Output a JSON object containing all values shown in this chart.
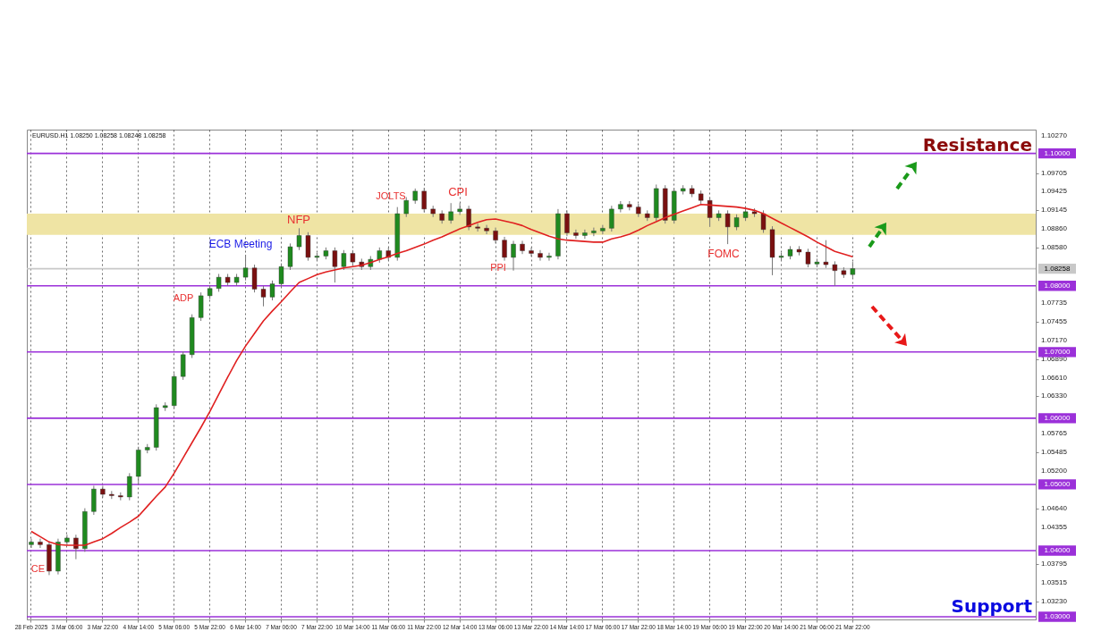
{
  "chart_data": {
    "type": "candlestick",
    "categories": [
      "28 Feb 2025",
      null,
      null,
      null,
      "3 Mar 06:00",
      null,
      null,
      null,
      "3 Mar 22:00",
      null,
      null,
      null,
      "4 Mar 14:00",
      null,
      null,
      null,
      "5 Mar 06:00",
      null,
      null,
      null,
      "5 Mar 22:00",
      null,
      null,
      null,
      "6 Mar 14:00",
      null,
      null,
      null,
      "7 Mar 06:00",
      null,
      null,
      null,
      "7 Mar 22:00",
      null,
      null,
      null,
      "10 Mar 14:00",
      null,
      null,
      null,
      "11 Mar 06:00",
      null,
      null,
      null,
      "11 Mar 22:00",
      null,
      null,
      null,
      "12 Mar 14:00",
      null,
      null,
      null,
      "13 Mar 06:00",
      null,
      null,
      null,
      "13 Mar 22:00",
      null,
      null,
      null,
      "14 Mar 14:00",
      null,
      null,
      null,
      "17 Mar 06:00",
      null,
      null,
      null,
      "17 Mar 22:00",
      null,
      null,
      null,
      "18 Mar 14:00",
      null,
      null,
      null,
      "19 Mar 06:00",
      null,
      null,
      null,
      "19 Mar 22:00",
      null,
      null,
      null,
      "20 Mar 14:00",
      null,
      null,
      null,
      "21 Mar 06:00",
      null,
      null,
      null,
      "21 Mar 22:00",
      null,
      null,
      null,
      null,
      null,
      null,
      null,
      null,
      null,
      null,
      null,
      null,
      null,
      null,
      null,
      null,
      null,
      null,
      null,
      null
    ],
    "ohlc": [
      [
        1.0409,
        1.0418,
        1.0404,
        1.0413
      ],
      [
        1.0413,
        1.0418,
        1.0404,
        1.0409
      ],
      [
        1.0409,
        1.0414,
        1.0363,
        1.0369
      ],
      [
        1.0369,
        1.0418,
        1.0364,
        1.0413
      ],
      [
        1.0413,
        1.0424,
        1.0408,
        1.0419
      ],
      [
        1.0419,
        1.0424,
        1.0387,
        1.0403
      ],
      [
        1.0403,
        1.0464,
        1.0398,
        1.0459
      ],
      [
        1.0459,
        1.0498,
        1.0454,
        1.0493
      ],
      [
        1.0493,
        1.0498,
        1.048,
        1.0485
      ],
      [
        1.0485,
        1.049,
        1.0478,
        1.0483
      ],
      [
        1.0483,
        1.0488,
        1.0476,
        1.0481
      ],
      [
        1.0481,
        1.0517,
        1.0476,
        1.0512
      ],
      [
        1.0512,
        1.0557,
        1.0499,
        1.0552
      ],
      [
        1.0552,
        1.0561,
        1.0547,
        1.0556
      ],
      [
        1.0556,
        1.0621,
        1.0551,
        1.0616
      ],
      [
        1.0616,
        1.0624,
        1.0611,
        1.0619
      ],
      [
        1.0619,
        1.0668,
        1.0614,
        1.0663
      ],
      [
        1.0663,
        1.0701,
        1.0658,
        1.0696
      ],
      [
        1.0696,
        1.0757,
        1.0691,
        1.0752
      ],
      [
        1.0752,
        1.079,
        1.0747,
        1.0785
      ],
      [
        1.0785,
        1.0801,
        1.078,
        1.0796
      ],
      [
        1.0796,
        1.0818,
        1.0791,
        1.0813
      ],
      [
        1.0813,
        1.0818,
        1.08,
        1.0805
      ],
      [
        1.0805,
        1.0818,
        1.08,
        1.0813
      ],
      [
        1.0813,
        1.0847,
        1.0808,
        1.0827
      ],
      [
        1.0827,
        1.0832,
        1.079,
        1.0795
      ],
      [
        1.0795,
        1.08,
        1.0769,
        1.0783
      ],
      [
        1.0783,
        1.0808,
        1.0778,
        1.0803
      ],
      [
        1.0803,
        1.0834,
        1.0798,
        1.0829
      ],
      [
        1.0829,
        1.0864,
        1.0824,
        1.0859
      ],
      [
        1.0859,
        1.0887,
        1.0854,
        1.0876
      ],
      [
        1.0876,
        1.0881,
        1.0838,
        1.0843
      ],
      [
        1.0843,
        1.085,
        1.0838,
        1.0845
      ],
      [
        1.0845,
        1.0858,
        1.084,
        1.0853
      ],
      [
        1.0853,
        1.0858,
        1.0805,
        1.0829
      ],
      [
        1.0829,
        1.0854,
        1.0824,
        1.0849
      ],
      [
        1.0849,
        1.0854,
        1.0831,
        1.0836
      ],
      [
        1.0836,
        1.0841,
        1.0824,
        1.0829
      ],
      [
        1.0829,
        1.0845,
        1.0824,
        1.084
      ],
      [
        1.084,
        1.0858,
        1.0835,
        1.0853
      ],
      [
        1.0853,
        1.0858,
        1.0838,
        1.0843
      ],
      [
        1.0843,
        1.0919,
        1.0838,
        1.0909
      ],
      [
        1.0909,
        1.0934,
        1.0904,
        1.0929
      ],
      [
        1.0929,
        1.0947,
        1.0924,
        1.0943
      ],
      [
        1.0943,
        1.0948,
        1.0911,
        1.0916
      ],
      [
        1.0916,
        1.0921,
        1.0904,
        1.0909
      ],
      [
        1.0909,
        1.0914,
        1.0894,
        1.0899
      ],
      [
        1.0899,
        1.0925,
        1.0894,
        1.0912
      ],
      [
        1.0912,
        1.0925,
        1.0907,
        1.0916
      ],
      [
        1.0916,
        1.0921,
        1.0884,
        1.0889
      ],
      [
        1.0889,
        1.0894,
        1.0882,
        1.0887
      ],
      [
        1.0887,
        1.0892,
        1.0878,
        1.0883
      ],
      [
        1.0883,
        1.0888,
        1.0864,
        1.0869
      ],
      [
        1.0869,
        1.0874,
        1.0838,
        1.0843
      ],
      [
        1.0843,
        1.0868,
        1.0823,
        1.0863
      ],
      [
        1.0863,
        1.0868,
        1.0848,
        1.0853
      ],
      [
        1.0853,
        1.0858,
        1.0844,
        1.0849
      ],
      [
        1.0849,
        1.0854,
        1.0838,
        1.0843
      ],
      [
        1.0843,
        1.085,
        1.0838,
        1.0845
      ],
      [
        1.0845,
        1.0916,
        1.084,
        1.0909
      ],
      [
        1.0909,
        1.0914,
        1.0875,
        1.088
      ],
      [
        1.088,
        1.0885,
        1.0871,
        1.0876
      ],
      [
        1.0876,
        1.0885,
        1.0871,
        1.088
      ],
      [
        1.088,
        1.0888,
        1.0875,
        1.0883
      ],
      [
        1.0883,
        1.0892,
        1.0878,
        1.0887
      ],
      [
        1.0887,
        1.0921,
        1.0882,
        1.0916
      ],
      [
        1.0916,
        1.0928,
        1.0911,
        1.0923
      ],
      [
        1.0923,
        1.0928,
        1.0914,
        1.0919
      ],
      [
        1.0919,
        1.0924,
        1.0904,
        1.0909
      ],
      [
        1.0909,
        1.0914,
        1.0898,
        1.0903
      ],
      [
        1.0903,
        1.0953,
        1.0898,
        1.0947
      ],
      [
        1.0947,
        1.0952,
        1.0894,
        1.0899
      ],
      [
        1.0899,
        1.0948,
        1.0894,
        1.0943
      ],
      [
        1.0943,
        1.0952,
        1.0938,
        1.0947
      ],
      [
        1.0947,
        1.0952,
        1.0934,
        1.0939
      ],
      [
        1.0939,
        1.0944,
        1.0924,
        1.0929
      ],
      [
        1.0929,
        1.0934,
        1.0889,
        1.0903
      ],
      [
        1.0903,
        1.0914,
        1.0898,
        1.0909
      ],
      [
        1.0909,
        1.0914,
        1.0863,
        1.0889
      ],
      [
        1.0889,
        1.0908,
        1.0884,
        1.0903
      ],
      [
        1.0903,
        1.0917,
        1.0898,
        1.0912
      ],
      [
        1.0912,
        1.0917,
        1.0904,
        1.0909
      ],
      [
        1.0909,
        1.0914,
        1.088,
        1.0885
      ],
      [
        1.0885,
        1.089,
        1.0816,
        1.0843
      ],
      [
        1.0843,
        1.085,
        1.0838,
        1.0845
      ],
      [
        1.0845,
        1.086,
        1.084,
        1.0855
      ],
      [
        1.0855,
        1.086,
        1.0846,
        1.0851
      ],
      [
        1.0851,
        1.0856,
        1.0828,
        1.0833
      ],
      [
        1.0833,
        1.0841,
        1.0828,
        1.0836
      ],
      [
        1.0836,
        1.0869,
        1.0827,
        1.0832
      ],
      [
        1.0832,
        1.0837,
        1.08,
        1.0823
      ],
      [
        1.0823,
        1.0828,
        1.0812,
        1.0817
      ],
      [
        1.0817,
        1.0836,
        1.0812,
        1.0826
      ],
      null,
      null,
      null,
      null,
      null,
      null,
      null,
      null,
      null,
      null,
      null,
      null,
      null,
      null,
      null,
      null,
      null,
      null,
      null,
      null
    ],
    "series": [
      {
        "type": "line",
        "color": "#e02020",
        "values": [
          1.0429,
          1.0421,
          1.0413,
          1.0409,
          1.0408,
          1.0408,
          1.0408,
          1.0413,
          1.0418,
          1.0426,
          1.0435,
          1.0443,
          1.0452,
          1.0467,
          1.0482,
          1.0496,
          1.0517,
          1.054,
          1.0563,
          1.0586,
          1.061,
          1.0636,
          1.0662,
          1.0687,
          1.0709,
          1.0728,
          1.0747,
          1.0762,
          1.0776,
          1.0791,
          1.0805,
          1.0811,
          1.0817,
          1.0821,
          1.0824,
          1.0827,
          1.0829,
          1.0831,
          1.0835,
          1.084,
          1.0844,
          1.0849,
          1.0853,
          1.0858,
          1.0863,
          1.0869,
          1.0874,
          1.088,
          1.0886,
          1.0891,
          1.0896,
          1.09,
          1.0901,
          1.0898,
          1.0895,
          1.0891,
          1.0885,
          1.088,
          1.0875,
          1.0871,
          1.0869,
          1.0868,
          1.0867,
          1.0866,
          1.0866,
          1.0871,
          1.0874,
          1.0878,
          1.0884,
          1.0891,
          1.0897,
          1.0903,
          1.0908,
          1.0913,
          1.0918,
          1.0923,
          1.0922,
          1.0921,
          1.092,
          1.0919,
          1.0917,
          1.0914,
          1.0909,
          1.0902,
          1.0895,
          1.0888,
          1.0881,
          1.0874,
          1.0866,
          1.0859,
          1.0852,
          1.0848,
          1.0844,
          null,
          null,
          null,
          null,
          null,
          null,
          null,
          null,
          null,
          null,
          null,
          null,
          null,
          null,
          null,
          null,
          null,
          null,
          null,
          null
        ]
      }
    ],
    "ylim": [
      1.0296,
      1.1036
    ],
    "yticks": [
      {
        "value": 1.1027,
        "label": "1.10270"
      },
      {
        "value": 1.09705,
        "label": "1.09705"
      },
      {
        "value": 1.09425,
        "label": "1.09425"
      },
      {
        "value": 1.09145,
        "label": "1.09145"
      },
      {
        "value": 1.0886,
        "label": "1.08860"
      },
      {
        "value": 1.0858,
        "label": "1.08580"
      },
      {
        "value": 1.07735,
        "label": "1.07735"
      },
      {
        "value": 1.07455,
        "label": "1.07455"
      },
      {
        "value": 1.0717,
        "label": "1.07170"
      },
      {
        "value": 1.0689,
        "label": "1.06890"
      },
      {
        "value": 1.0661,
        "label": "1.06610"
      },
      {
        "value": 1.0633,
        "label": "1.06330"
      },
      {
        "value": 1.05765,
        "label": "1.05765"
      },
      {
        "value": 1.05485,
        "label": "1.05485"
      },
      {
        "value": 1.052,
        "label": "1.05200"
      },
      {
        "value": 1.0464,
        "label": "1.04640"
      },
      {
        "value": 1.04355,
        "label": "1.04355"
      },
      {
        "value": 1.03795,
        "label": "1.03795"
      },
      {
        "value": 1.03515,
        "label": "1.03515"
      },
      {
        "value": 1.0323,
        "label": "1.03230"
      }
    ],
    "grid": "x",
    "ref_lines": [
      {
        "axis": "y",
        "value": 1.1,
        "label": "1.10000",
        "color": "#9b30d9"
      },
      {
        "axis": "y",
        "value": 1.08,
        "label": "1.08000",
        "color": "#9b30d9"
      },
      {
        "axis": "y",
        "value": 1.07,
        "label": "1.07000",
        "color": "#9b30d9"
      },
      {
        "axis": "y",
        "value": 1.06,
        "label": "1.06000",
        "color": "#9b30d9"
      },
      {
        "axis": "y",
        "value": 1.05,
        "label": "1.05000",
        "color": "#9b30d9"
      },
      {
        "axis": "y",
        "value": 1.04,
        "label": "1.04000",
        "color": "#9b30d9"
      },
      {
        "axis": "y",
        "value": 1.03,
        "label": "1.03000",
        "color": "#9b30d9"
      },
      {
        "axis": "y",
        "value": 1.08258,
        "label": "1.08258",
        "color": "#c8c8c8"
      }
    ],
    "bands": [
      {
        "axis": "y",
        "from": 1.0877,
        "to": 1.0909,
        "color": "#efe4a4"
      }
    ],
    "annotations": [
      "EURUSD.H1 1.08250 1.08258 1.08248 1.08258",
      "Resistance",
      "Support",
      "CE",
      "ADP",
      "ECB Meeting",
      "NFP",
      "JOLTS",
      "CPI",
      "PPI",
      "FOMC"
    ]
  }
}
